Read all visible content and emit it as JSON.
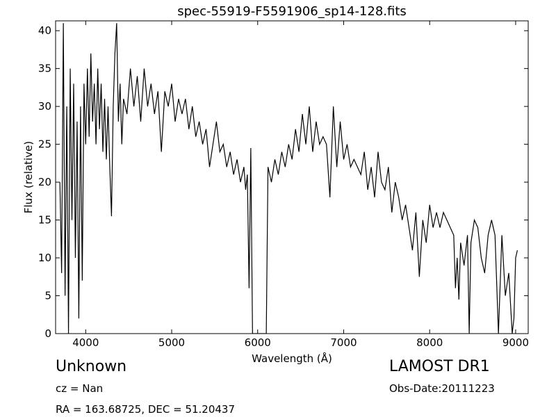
{
  "chart_data": {
    "type": "line",
    "title": "spec-55919-F5591906_sp14-128.fits",
    "x_label": "Wavelength (Å)",
    "y_label": "Flux (relative)",
    "annotations": [
      "Unknown",
      "cz = Nan",
      "RA = 163.68725, DEC = 51.20437",
      "LAMOST DR1",
      "Obs-Date:20111223"
    ],
    "color": "#000000",
    "xlim": [
      3650,
      9146
    ],
    "ylim": [
      0,
      41.3
    ],
    "xticks": [
      4000,
      5000,
      6000,
      7000,
      8000,
      9000
    ],
    "yticks": [
      0,
      5,
      10,
      15,
      20,
      25,
      30,
      35,
      40
    ],
    "x": [
      3700,
      3720,
      3740,
      3760,
      3780,
      3800,
      3820,
      3840,
      3860,
      3880,
      3900,
      3920,
      3940,
      3960,
      3980,
      4000,
      4020,
      4040,
      4060,
      4080,
      4100,
      4120,
      4140,
      4160,
      4180,
      4200,
      4220,
      4240,
      4260,
      4280,
      4300,
      4320,
      4340,
      4360,
      4380,
      4400,
      4420,
      4440,
      4480,
      4520,
      4560,
      4600,
      4640,
      4680,
      4720,
      4760,
      4800,
      4840,
      4880,
      4920,
      4960,
      5000,
      5040,
      5080,
      5120,
      5160,
      5200,
      5240,
      5280,
      5320,
      5360,
      5400,
      5440,
      5480,
      5520,
      5560,
      5600,
      5640,
      5680,
      5720,
      5760,
      5800,
      5840,
      5860,
      5880,
      5900,
      5920,
      5940,
      6000,
      6080,
      6100,
      6120,
      6160,
      6200,
      6240,
      6280,
      6320,
      6360,
      6400,
      6440,
      6480,
      6520,
      6560,
      6600,
      6640,
      6680,
      6720,
      6760,
      6800,
      6840,
      6880,
      6920,
      6960,
      7000,
      7040,
      7080,
      7120,
      7160,
      7200,
      7240,
      7280,
      7320,
      7360,
      7400,
      7440,
      7480,
      7520,
      7560,
      7600,
      7640,
      7680,
      7720,
      7760,
      7800,
      7840,
      7880,
      7920,
      7960,
      8000,
      8040,
      8080,
      8120,
      8160,
      8200,
      8240,
      8280,
      8300,
      8320,
      8340,
      8360,
      8400,
      8440,
      8460,
      8480,
      8520,
      8560,
      8600,
      8640,
      8680,
      8720,
      8760,
      8800,
      8840,
      8880,
      8920,
      8960,
      8980,
      9000,
      9020
    ],
    "y": [
      20,
      8,
      41,
      5,
      30,
      0,
      35,
      15,
      33,
      10,
      28,
      2,
      30,
      7,
      33,
      25,
      35,
      26,
      37,
      28,
      33,
      25,
      35,
      27,
      33,
      24,
      31,
      23,
      30,
      22,
      15.5,
      30,
      37,
      41,
      28,
      33,
      25,
      31,
      29,
      35,
      30,
      34,
      28,
      35,
      30,
      33,
      29,
      32,
      24,
      32,
      30,
      33,
      28,
      31,
      29,
      31,
      27,
      30,
      26,
      28,
      25,
      27,
      22,
      25,
      28,
      24,
      25,
      22,
      24,
      21,
      23,
      20,
      22,
      19,
      21,
      6,
      24.5,
      0,
      0,
      0,
      0,
      22,
      20,
      23,
      21,
      24,
      22,
      25,
      23,
      27,
      24,
      29,
      25,
      30,
      24,
      28,
      25,
      26,
      25,
      18,
      30,
      22,
      28,
      23,
      25,
      22,
      23,
      22,
      21,
      24,
      19,
      22,
      18,
      24,
      20,
      19,
      22,
      16,
      20,
      18,
      15,
      17,
      14,
      11,
      16,
      7.5,
      15,
      12,
      17,
      14,
      16,
      14,
      16,
      15,
      14,
      13,
      6,
      10,
      4.5,
      12,
      9,
      13,
      0,
      12,
      15,
      14,
      10,
      8,
      13,
      15,
      13,
      0,
      13,
      5,
      8,
      0,
      2,
      10,
      11
    ]
  }
}
